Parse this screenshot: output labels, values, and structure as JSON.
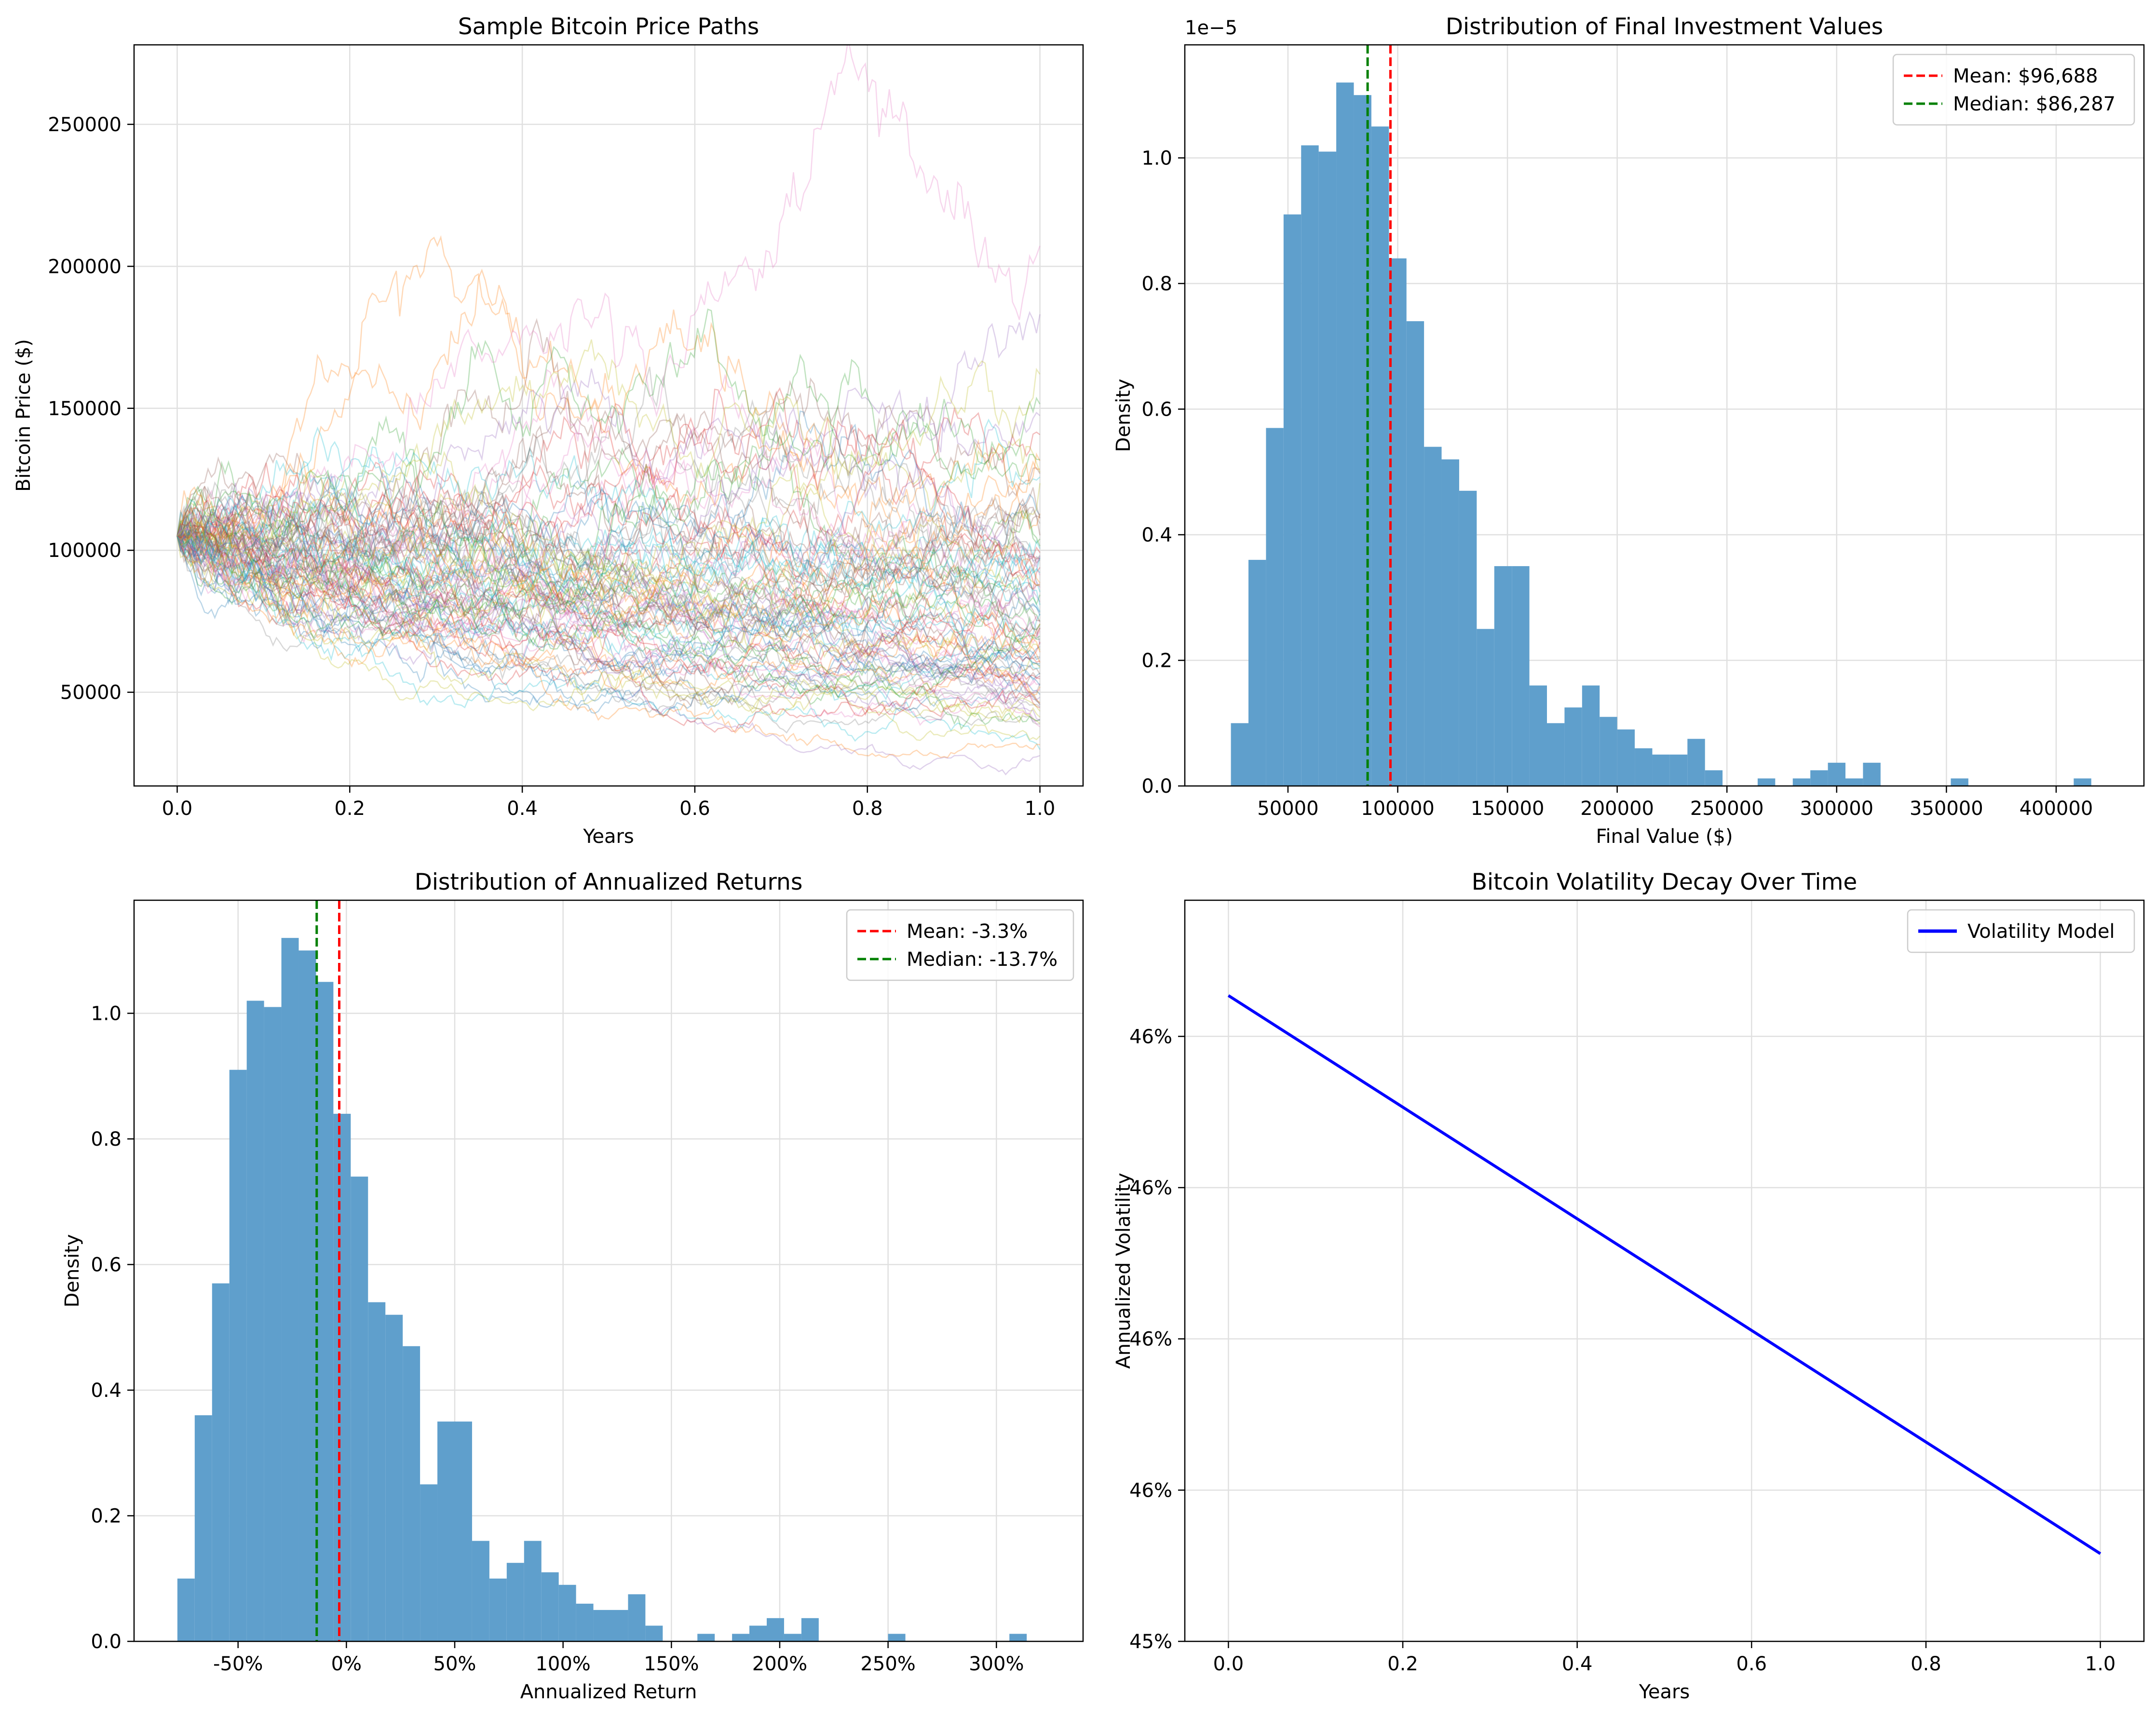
{
  "chart_data": [
    {
      "type": "line",
      "title": "Sample Bitcoin Price Paths",
      "xlabel": "Years",
      "ylabel": "Bitcoin Price ($)",
      "xlim": [
        -0.05,
        1.05
      ],
      "ylim": [
        17000,
        278000
      ],
      "xticks": [
        0.0,
        0.2,
        0.4,
        0.6,
        0.8,
        1.0
      ],
      "xtick_labels": [
        "0.0",
        "0.2",
        "0.4",
        "0.6",
        "0.8",
        "1.0"
      ],
      "yticks": [
        50000,
        100000,
        150000,
        200000,
        250000
      ],
      "ytick_labels": [
        "50000",
        "100000",
        "150000",
        "200000",
        "250000"
      ],
      "grid": true,
      "series_info": {
        "count": 100,
        "start_value": 105000,
        "steps": 252,
        "line_alpha": 0.3
      },
      "series_colors": [
        "#1f77b4",
        "#ff7f0e",
        "#2ca02c",
        "#d62728",
        "#9467bd",
        "#8c564b",
        "#e377c2",
        "#7f7f7f",
        "#bcbd22",
        "#17becf"
      ]
    },
    {
      "type": "histogram",
      "title": "Distribution of Final Investment Values",
      "xlabel": "Final Value ($)",
      "ylabel": "Density",
      "offset_label": "1e−5",
      "xlim": [
        3000,
        440000
      ],
      "ylim": [
        0,
        1.18
      ],
      "xticks": [
        50000,
        100000,
        150000,
        200000,
        250000,
        300000,
        350000,
        400000
      ],
      "xtick_labels": [
        "50000",
        "100000",
        "150000",
        "200000",
        "250000",
        "300000",
        "350000",
        "400000"
      ],
      "yticks": [
        0.0,
        0.2,
        0.4,
        0.6,
        0.8,
        1.0
      ],
      "ytick_labels": [
        "0.0",
        "0.2",
        "0.4",
        "0.6",
        "0.8",
        "1.0"
      ],
      "bin_start": 24000,
      "bin_width": 8000,
      "values": [
        0.1,
        0.36,
        0.57,
        0.91,
        1.02,
        1.01,
        1.12,
        1.1,
        1.05,
        0.84,
        0.74,
        0.54,
        0.52,
        0.47,
        0.25,
        0.35,
        0.35,
        0.16,
        0.1,
        0.125,
        0.16,
        0.11,
        0.09,
        0.06,
        0.05,
        0.05,
        0.075,
        0.025,
        0,
        0,
        0.012,
        0,
        0.012,
        0.025,
        0.037,
        0.012,
        0.037,
        0,
        0,
        0,
        0,
        0.012,
        0,
        0,
        0,
        0,
        0,
        0,
        0.012
      ],
      "mean_value": 96688,
      "median_value": 86287,
      "legend": [
        {
          "label": "Mean: $96,688",
          "color": "#ff0000",
          "style": "dashed"
        },
        {
          "label": "Median: $86,287",
          "color": "#008000",
          "style": "dashed"
        }
      ],
      "legend_position": "top-right",
      "bar_color": "#5f9fcc",
      "grid": true
    },
    {
      "type": "histogram",
      "title": "Distribution of Annualized Returns",
      "xlabel": "Annualized Return",
      "ylabel": "Density",
      "xlim": [
        -0.98,
        3.4
      ],
      "ylim": [
        0,
        1.18
      ],
      "xticks": [
        -0.5,
        0,
        0.5,
        1.0,
        1.5,
        2.0,
        2.5,
        3.0
      ],
      "xtick_labels": [
        "-50%",
        "0%",
        "50%",
        "100%",
        "150%",
        "200%",
        "250%",
        "300%"
      ],
      "yticks": [
        0.0,
        0.2,
        0.4,
        0.6,
        0.8,
        1.0
      ],
      "ytick_labels": [
        "0.0",
        "0.2",
        "0.4",
        "0.6",
        "0.8",
        "1.0"
      ],
      "bin_start": -0.78,
      "bin_width": 0.08,
      "values": [
        0.1,
        0.36,
        0.57,
        0.91,
        1.02,
        1.01,
        1.12,
        1.1,
        1.05,
        0.84,
        0.74,
        0.54,
        0.52,
        0.47,
        0.25,
        0.35,
        0.35,
        0.16,
        0.1,
        0.125,
        0.16,
        0.11,
        0.09,
        0.06,
        0.05,
        0.05,
        0.075,
        0.025,
        0,
        0,
        0.012,
        0,
        0.012,
        0.025,
        0.037,
        0.012,
        0.037,
        0,
        0,
        0,
        0,
        0.012,
        0,
        0,
        0,
        0,
        0,
        0,
        0.012
      ],
      "mean_value": -0.033,
      "median_value": -0.137,
      "legend": [
        {
          "label": "Mean: -3.3%",
          "color": "#ff0000",
          "style": "dashed"
        },
        {
          "label": "Median: -13.7%",
          "color": "#008000",
          "style": "dashed"
        }
      ],
      "legend_position": "top-right",
      "bar_color": "#5f9fcc",
      "grid": true
    },
    {
      "type": "line",
      "title": "Bitcoin Volatility Decay Over Time",
      "xlabel": "Years",
      "ylabel": "Annualized Volatility",
      "xlim": [
        -0.05,
        1.05
      ],
      "ylim": [
        0.455,
        0.4599
      ],
      "xticks": [
        0.0,
        0.2,
        0.4,
        0.6,
        0.8,
        1.0
      ],
      "xtick_labels": [
        "0.0",
        "0.2",
        "0.4",
        "0.6",
        "0.8",
        "1.0"
      ],
      "yticks": [
        0.455,
        0.456,
        0.457,
        0.458,
        0.459
      ],
      "ytick_labels": [
        "45%",
        "46%",
        "46%",
        "46%",
        "46%"
      ],
      "series": [
        {
          "name": "Volatility Model",
          "x": [
            0.0,
            1.0
          ],
          "y": [
            0.45927,
            0.45558
          ]
        }
      ],
      "legend_position": "top-right",
      "line_color": "#0000ff",
      "grid": true
    }
  ]
}
